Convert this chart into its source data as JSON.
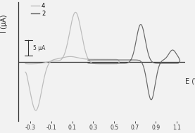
{
  "xlabel": "E (V)",
  "ylabel": "I (μA)",
  "xlim": [
    -0.42,
    1.18
  ],
  "ylim": [
    -1.05,
    1.05
  ],
  "scale_bar_label": "5 μA",
  "legend": [
    "4",
    "2"
  ],
  "curve4_color": "#bbbbbb",
  "curve2_color": "#666666",
  "background_color": "#f2f2f2",
  "axis_color": "#333333",
  "xticks": [
    -0.3,
    -0.1,
    0.1,
    0.3,
    0.5,
    0.7,
    0.9,
    1.1
  ],
  "tick_fontsize": 5.5,
  "label_fontsize": 7
}
